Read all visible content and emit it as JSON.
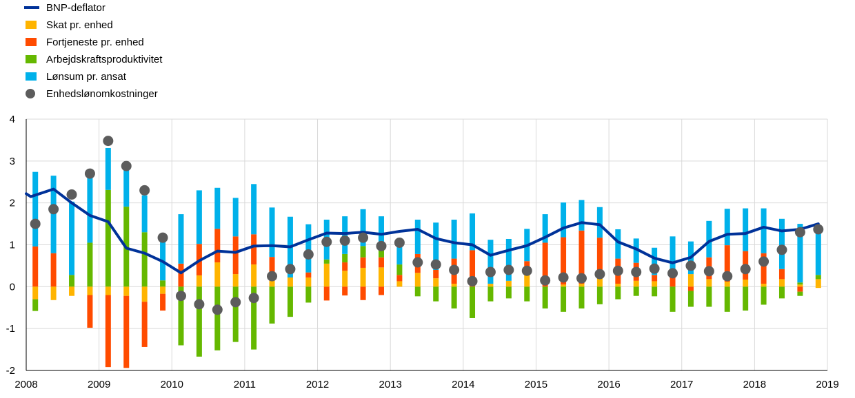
{
  "chart_data": {
    "type": "bar",
    "title": "",
    "xlabel": "",
    "ylabel": "",
    "ylim": [
      -2,
      4
    ],
    "yticks": [
      -2,
      -1,
      0,
      1,
      2,
      3,
      4
    ],
    "grid": true,
    "legend_position": "top-left",
    "x_tick_labels": [
      "2008",
      "2009",
      "2010",
      "2011",
      "2012",
      "2013",
      "2014",
      "2015",
      "2016",
      "2017",
      "2018",
      "2019"
    ],
    "quarters": [
      "2008K1",
      "2008K2",
      "2008K3",
      "2008K4",
      "2009K1",
      "2009K2",
      "2009K3",
      "2009K4",
      "2010K1",
      "2010K2",
      "2010K3",
      "2010K4",
      "2011K1",
      "2011K2",
      "2011K3",
      "2011K4",
      "2012K1",
      "2012K2",
      "2012K3",
      "2012K4",
      "2013K1",
      "2013K2",
      "2013K3",
      "2013K4",
      "2014K1",
      "2014K2",
      "2014K3",
      "2014K4",
      "2015K1",
      "2015K2",
      "2015K3",
      "2015K4",
      "2016K1",
      "2016K2",
      "2016K3",
      "2016K4",
      "2017K1",
      "2017K2",
      "2017K3",
      "2017K4",
      "2018K1",
      "2018K2",
      "2018K3",
      "2018K4"
    ],
    "legend": [
      {
        "label": "BNP-deflator",
        "kind": "line",
        "color": "#003299"
      },
      {
        "label": "Skat pr. enhed",
        "kind": "bar",
        "color": "#FFB400"
      },
      {
        "label": "Fortjeneste pr. enhed",
        "kind": "bar",
        "color": "#FF4B00"
      },
      {
        "label": "Arbejdskraftsproduktivitet",
        "kind": "bar",
        "color": "#65B800"
      },
      {
        "label": "Lønsum pr. ansat",
        "kind": "bar",
        "color": "#00B1EA"
      },
      {
        "label": "Enhedslønomkostninger",
        "kind": "dot",
        "color": "#5C5C5C"
      }
    ],
    "series": {
      "skat": [
        0,
        0,
        0,
        0,
        0,
        0,
        0,
        0,
        0,
        0.27,
        0.58,
        0.3,
        0.53,
        0.14,
        0.22,
        0.22,
        0.55,
        0.38,
        0.45,
        0.46,
        0.13,
        0.33,
        0.2,
        0.07,
        0,
        0.07,
        0.14,
        0.28,
        0,
        0.05,
        0.07,
        0.2,
        0.07,
        0.14,
        0.13,
        0,
        0.3,
        0.18,
        0.12,
        0.17,
        0.07,
        0.18,
        0.05,
        0.18
      ],
      "skat_neg": [
        -0.3,
        -0.32,
        -0.22,
        -0.2,
        -0.2,
        -0.22,
        -0.36,
        -0.17,
        0,
        0,
        0,
        0,
        0,
        0,
        0,
        0,
        0,
        0,
        0,
        0,
        0,
        0,
        0,
        0,
        0,
        0,
        0,
        0,
        0,
        0,
        0,
        0,
        0,
        0,
        0,
        0,
        0,
        0,
        0,
        0,
        0,
        0,
        0,
        -0.03
      ],
      "fortjeneste": [
        0.96,
        0.8,
        0,
        0,
        0,
        0,
        0,
        0,
        0.55,
        0.75,
        0.8,
        0.9,
        0.72,
        0.57,
        0,
        0.12,
        0,
        0.2,
        0.25,
        0.24,
        0.15,
        0.45,
        0.2,
        0.6,
        0.87,
        0,
        0,
        0.33,
        1.05,
        1.13,
        1.27,
        0.97,
        0.6,
        0.43,
        0.15,
        0.4,
        0,
        0.52,
        0.87,
        0.68,
        0.73,
        0.24,
        0,
        0
      ],
      "fortjeneste_neg": [
        0,
        0,
        0,
        -0.78,
        -1.72,
        -1.72,
        -1.08,
        -0.4,
        0,
        0,
        0,
        0,
        0,
        0,
        0,
        0,
        -0.33,
        -0.21,
        -0.32,
        -0.2,
        0,
        0,
        0,
        0,
        0,
        0,
        0,
        0,
        0,
        0,
        0,
        0,
        0,
        0,
        0,
        0,
        -0.1,
        0,
        0,
        0,
        0,
        0,
        -0.12,
        0
      ],
      "produktivitet": [
        0,
        0,
        0.28,
        1.05,
        2.31,
        1.91,
        1.3,
        0.15,
        0,
        0,
        0,
        0,
        0,
        0,
        0,
        0,
        0.1,
        0.2,
        0.27,
        0.25,
        0.25,
        0,
        0,
        0,
        0,
        0,
        0,
        0,
        0,
        0,
        0,
        0,
        0,
        0,
        0,
        0,
        0,
        0,
        0,
        0,
        0,
        0,
        0.05,
        0.1
      ],
      "produktivitet_neg": [
        -0.28,
        0,
        0,
        0,
        0,
        0,
        0,
        0,
        -1.4,
        -1.67,
        -1.52,
        -1.32,
        -1.5,
        -0.88,
        -0.72,
        -0.38,
        0,
        0,
        0,
        0,
        0,
        -0.23,
        -0.35,
        -0.52,
        -0.75,
        -0.35,
        -0.28,
        -0.35,
        -0.52,
        -0.6,
        -0.52,
        -0.42,
        -0.3,
        -0.22,
        -0.23,
        -0.6,
        -0.38,
        -0.48,
        -0.6,
        -0.57,
        -0.43,
        -0.28,
        -0.1,
        0
      ],
      "loensum": [
        1.78,
        1.85,
        1.75,
        1.55,
        1.0,
        0.88,
        0.88,
        0.93,
        1.18,
        1.28,
        0.98,
        0.92,
        1.2,
        1.18,
        1.45,
        1.15,
        0.95,
        0.9,
        0.88,
        0.73,
        0.6,
        0.82,
        1.13,
        0.93,
        0.88,
        1.05,
        1.0,
        0.77,
        0.68,
        0.83,
        0.73,
        0.73,
        0.7,
        0.58,
        0.65,
        0.8,
        0.78,
        0.87,
        0.87,
        1.02,
        1.07,
        1.2,
        1.4,
        1.08
      ]
    },
    "enhedsloenomkostninger": [
      1.5,
      1.85,
      2.2,
      2.7,
      3.48,
      2.88,
      2.3,
      1.17,
      -0.22,
      -0.42,
      -0.55,
      -0.37,
      -0.27,
      0.25,
      0.42,
      0.77,
      1.07,
      1.1,
      1.17,
      0.97,
      1.05,
      0.58,
      0.53,
      0.4,
      0.13,
      0.35,
      0.4,
      0.38,
      0.15,
      0.22,
      0.2,
      0.3,
      0.38,
      0.35,
      0.43,
      0.32,
      0.5,
      0.37,
      0.25,
      0.42,
      0.6,
      0.88,
      1.3,
      1.37
    ],
    "bnp_deflator": [
      2.22,
      2.15,
      2.33,
      2.0,
      1.7,
      1.55,
      0.92,
      0.8,
      0.6,
      0.33,
      0.62,
      0.85,
      0.82,
      0.97,
      0.98,
      0.95,
      1.12,
      1.28,
      1.27,
      1.3,
      1.25,
      1.32,
      1.37,
      1.15,
      1.05,
      1.0,
      0.75,
      0.87,
      0.98,
      1.18,
      1.4,
      1.53,
      1.48,
      1.07,
      0.9,
      0.68,
      0.57,
      0.7,
      1.08,
      1.25,
      1.27,
      1.42,
      1.33,
      1.37,
      1.5
    ],
    "bnp_deflator_x": [
      0,
      0.25,
      2,
      4,
      6,
      8,
      10,
      12,
      14,
      16,
      18,
      20,
      22,
      24,
      26,
      28,
      30,
      32,
      34,
      36,
      38,
      40,
      42,
      44,
      46,
      48,
      50,
      52,
      54,
      56,
      58,
      60,
      62,
      64,
      66,
      68,
      70,
      72,
      74,
      76,
      78,
      80,
      82,
      84,
      86
    ]
  }
}
